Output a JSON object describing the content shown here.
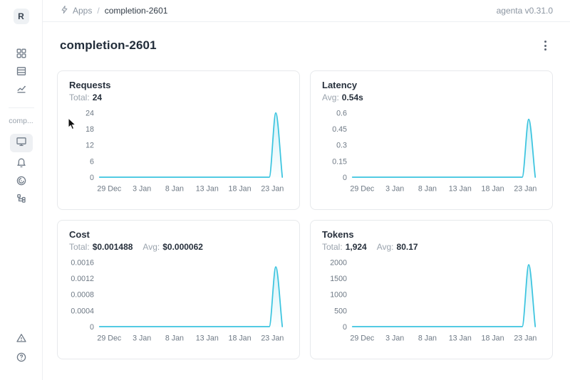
{
  "header": {
    "breadcrumb": {
      "section": "Apps",
      "separator": "/",
      "current": "completion-2601"
    },
    "version": "agenta v0.31.0"
  },
  "sidebar": {
    "avatar_letter": "R",
    "workspace_label": "comp...",
    "items": [
      {
        "icon": "apps-grid-icon"
      },
      {
        "icon": "table-icon"
      },
      {
        "icon": "line-chart-icon"
      },
      {
        "icon": "monitor-icon",
        "selected": true
      },
      {
        "icon": "bell-icon"
      },
      {
        "icon": "radar-icon"
      },
      {
        "icon": "tree-icon"
      },
      {
        "icon": "alert-triangle-icon"
      },
      {
        "icon": "help-icon"
      }
    ]
  },
  "page": {
    "title": "completion-2601"
  },
  "colors": {
    "line": "#3BC4DF",
    "fill_top": "rgba(59,196,223,0.22)",
    "fill_bottom": "rgba(59,196,223,0.01)",
    "axis_text": "#6e7985"
  },
  "chart_data": [
    {
      "type": "area",
      "title": "Requests",
      "stats": [
        {
          "label": "Total:",
          "value": "24"
        }
      ],
      "x": [
        "29 Dec",
        "30 Dec",
        "31 Dec",
        "1 Jan",
        "2 Jan",
        "3 Jan",
        "4 Jan",
        "5 Jan",
        "6 Jan",
        "7 Jan",
        "8 Jan",
        "9 Jan",
        "10 Jan",
        "11 Jan",
        "12 Jan",
        "13 Jan",
        "14 Jan",
        "15 Jan",
        "16 Jan",
        "17 Jan",
        "18 Jan",
        "19 Jan",
        "20 Jan",
        "21 Jan",
        "22 Jan",
        "23 Jan",
        "24 Jan",
        "25 Jan",
        "26 Jan"
      ],
      "values": [
        0,
        0,
        0,
        0,
        0,
        0,
        0,
        0,
        0,
        0,
        0,
        0,
        0,
        0,
        0,
        0,
        0,
        0,
        0,
        0,
        0,
        0,
        0,
        0,
        0,
        0,
        0,
        24,
        0
      ],
      "x_tick_labels": [
        "29 Dec",
        "3 Jan",
        "8 Jan",
        "13 Jan",
        "18 Jan",
        "23 Jan"
      ],
      "y_ticks": [
        "0",
        "6",
        "12",
        "18",
        "24"
      ],
      "ylim": [
        0,
        24
      ],
      "grid": false,
      "legend": false
    },
    {
      "type": "area",
      "title": "Latency",
      "stats": [
        {
          "label": "Avg:",
          "value": "0.54s"
        }
      ],
      "x": [
        "29 Dec",
        "30 Dec",
        "31 Dec",
        "1 Jan",
        "2 Jan",
        "3 Jan",
        "4 Jan",
        "5 Jan",
        "6 Jan",
        "7 Jan",
        "8 Jan",
        "9 Jan",
        "10 Jan",
        "11 Jan",
        "12 Jan",
        "13 Jan",
        "14 Jan",
        "15 Jan",
        "16 Jan",
        "17 Jan",
        "18 Jan",
        "19 Jan",
        "20 Jan",
        "21 Jan",
        "22 Jan",
        "23 Jan",
        "24 Jan",
        "25 Jan",
        "26 Jan"
      ],
      "values": [
        0,
        0,
        0,
        0,
        0,
        0,
        0,
        0,
        0,
        0,
        0,
        0,
        0,
        0,
        0,
        0,
        0,
        0,
        0,
        0,
        0,
        0,
        0,
        0,
        0,
        0,
        0,
        0.54,
        0
      ],
      "x_tick_labels": [
        "29 Dec",
        "3 Jan",
        "8 Jan",
        "13 Jan",
        "18 Jan",
        "23 Jan"
      ],
      "y_ticks": [
        "0",
        "0.15",
        "0.3",
        "0.45",
        "0.6"
      ],
      "ylim": [
        0,
        0.6
      ],
      "grid": false,
      "legend": false
    },
    {
      "type": "area",
      "title": "Cost",
      "stats": [
        {
          "label": "Total:",
          "value": "$0.001488"
        },
        {
          "label": "Avg:",
          "value": "$0.000062"
        }
      ],
      "x": [
        "29 Dec",
        "30 Dec",
        "31 Dec",
        "1 Jan",
        "2 Jan",
        "3 Jan",
        "4 Jan",
        "5 Jan",
        "6 Jan",
        "7 Jan",
        "8 Jan",
        "9 Jan",
        "10 Jan",
        "11 Jan",
        "12 Jan",
        "13 Jan",
        "14 Jan",
        "15 Jan",
        "16 Jan",
        "17 Jan",
        "18 Jan",
        "19 Jan",
        "20 Jan",
        "21 Jan",
        "22 Jan",
        "23 Jan",
        "24 Jan",
        "25 Jan",
        "26 Jan"
      ],
      "values": [
        0,
        0,
        0,
        0,
        0,
        0,
        0,
        0,
        0,
        0,
        0,
        0,
        0,
        0,
        0,
        0,
        0,
        0,
        0,
        0,
        0,
        0,
        0,
        0,
        0,
        0,
        0,
        0.001488,
        0
      ],
      "x_tick_labels": [
        "29 Dec",
        "3 Jan",
        "8 Jan",
        "13 Jan",
        "18 Jan",
        "23 Jan"
      ],
      "y_ticks": [
        "0",
        "0.0004",
        "0.0008",
        "0.0012",
        "0.0016"
      ],
      "ylim": [
        0,
        0.0016
      ],
      "grid": false,
      "legend": false
    },
    {
      "type": "area",
      "title": "Tokens",
      "stats": [
        {
          "label": "Total:",
          "value": "1,924"
        },
        {
          "label": "Avg:",
          "value": "80.17"
        }
      ],
      "x": [
        "29 Dec",
        "30 Dec",
        "31 Dec",
        "1 Jan",
        "2 Jan",
        "3 Jan",
        "4 Jan",
        "5 Jan",
        "6 Jan",
        "7 Jan",
        "8 Jan",
        "9 Jan",
        "10 Jan",
        "11 Jan",
        "12 Jan",
        "13 Jan",
        "14 Jan",
        "15 Jan",
        "16 Jan",
        "17 Jan",
        "18 Jan",
        "19 Jan",
        "20 Jan",
        "21 Jan",
        "22 Jan",
        "23 Jan",
        "24 Jan",
        "25 Jan",
        "26 Jan"
      ],
      "values": [
        0,
        0,
        0,
        0,
        0,
        0,
        0,
        0,
        0,
        0,
        0,
        0,
        0,
        0,
        0,
        0,
        0,
        0,
        0,
        0,
        0,
        0,
        0,
        0,
        0,
        0,
        0,
        1924,
        0
      ],
      "x_tick_labels": [
        "29 Dec",
        "3 Jan",
        "8 Jan",
        "13 Jan",
        "18 Jan",
        "23 Jan"
      ],
      "y_ticks": [
        "0",
        "500",
        "1000",
        "1500",
        "2000"
      ],
      "ylim": [
        0,
        2000
      ],
      "grid": false,
      "legend": false
    }
  ]
}
